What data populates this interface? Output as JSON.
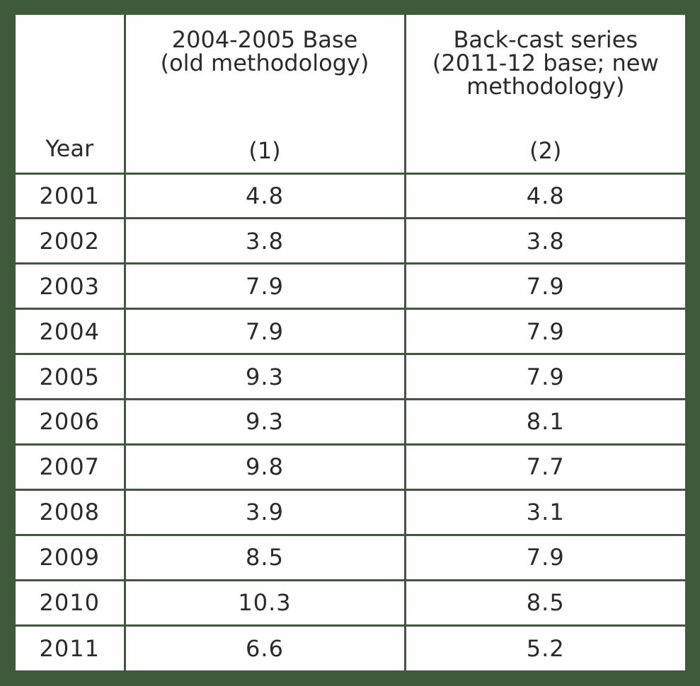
{
  "chart_data": {
    "type": "table",
    "columns": [
      {
        "header": "Year",
        "number": ""
      },
      {
        "header_lines": [
          "2004-2005 Base",
          "(old methodology)"
        ],
        "number": "(1)"
      },
      {
        "header_lines": [
          "Back-cast series",
          "(2011-12 base; new",
          "methodology)"
        ],
        "number": "(2)"
      }
    ],
    "rows": [
      {
        "year": "2001",
        "col1": "4.8",
        "col2": "4.8"
      },
      {
        "year": "2002",
        "col1": "3.8",
        "col2": "3.8"
      },
      {
        "year": "2003",
        "col1": "7.9",
        "col2": "7.9"
      },
      {
        "year": "2004",
        "col1": "7.9",
        "col2": "7.9"
      },
      {
        "year": "2005",
        "col1": "9.3",
        "col2": "7.9"
      },
      {
        "year": "2006",
        "col1": "9.3",
        "col2": "8.1"
      },
      {
        "year": "2007",
        "col1": "9.8",
        "col2": "7.7"
      },
      {
        "year": "2008",
        "col1": "3.9",
        "col2": "3.1"
      },
      {
        "year": "2009",
        "col1": "8.5",
        "col2": "7.9"
      },
      {
        "year": "2010",
        "col1": "10.3",
        "col2": "8.5"
      },
      {
        "year": "2011",
        "col1": "6.6",
        "col2": "5.2"
      }
    ],
    "highlight_from_year": "2005",
    "colors": {
      "border": "#3e5a3b",
      "text": "#2a2a2a",
      "highlight": "#b2222e",
      "background": "#ffffff"
    }
  }
}
